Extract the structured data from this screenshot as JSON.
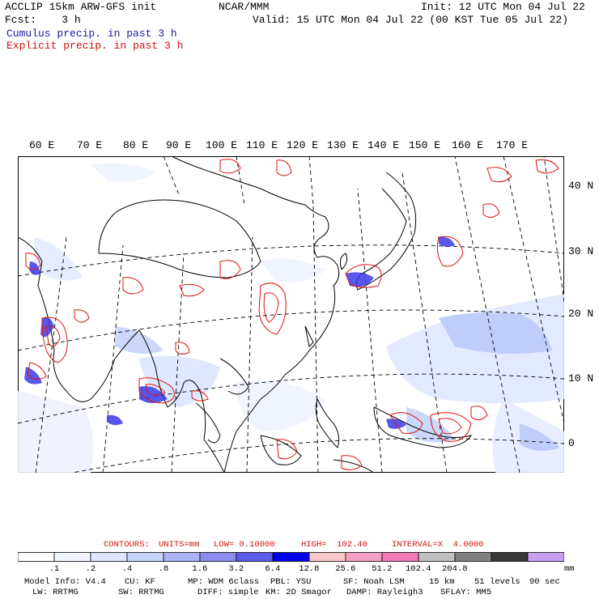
{
  "header": {
    "line1_left": "ACCLIP 15km ARW-GFS init",
    "line1_mid": "NCAR/MMM",
    "line1_right": "Init: 12 UTC Mon 04 Jul 22",
    "line2_left": "Fcst:    3 h",
    "line2_right": "Valid: 15 UTC Mon 04 Jul 22 (00 KST Tue 05 Jul 22)",
    "legend_cumulus": "Cumulus precip. in past 3 h",
    "legend_explicit": "Explicit precip. in past 3 h"
  },
  "map": {
    "lon_labels": [
      "60 E",
      "70 E",
      "80 E",
      "90 E",
      "100 E",
      "110 E",
      "120 E",
      "130 E",
      "140 E",
      "150 E",
      "160 E",
      "170 E"
    ],
    "lat_labels": [
      "40 N",
      "30 N",
      "20 N",
      "10 N",
      "0"
    ]
  },
  "contour_info": {
    "contours": "CONTOURS:",
    "units": "UNITS=mm",
    "low": "LOW= 0.10000",
    "high": "HIGH=  102.40",
    "interval": "INTERVAL=X  4.0000"
  },
  "colorbar": {
    "ticks": [
      ".1",
      ".2",
      ".4",
      ".8",
      "1.6",
      "3.2",
      "6.4",
      "12.8",
      "25.6",
      "51.2",
      "102.4",
      "204.8"
    ],
    "unit": "mm",
    "colors": [
      "#ffffff",
      "#f0f4ff",
      "#dce6ff",
      "#c6d4fa",
      "#aab4f4",
      "#8c8cf0",
      "#5c5cea",
      "#0000e8",
      "#f8c8c8",
      "#f4a0c4",
      "#f078b4",
      "#c0c0c0",
      "#808080",
      "#383838",
      "#c8a0f0"
    ]
  },
  "footer": {
    "line1": [
      {
        "label": "Model Info: V4.4"
      },
      {
        "label": "CU: KF"
      },
      {
        "label": "MP: WDM 6class"
      },
      {
        "label": "PBL: YSU"
      },
      {
        "label": "SF: Noah LSM"
      },
      {
        "label": "15 km"
      },
      {
        "label": "51 levels"
      },
      {
        "label": "90 sec"
      }
    ],
    "line2": [
      {
        "label": "LW: RRTMG"
      },
      {
        "label": "SW: RRTMG"
      },
      {
        "label": "DIFF: simple"
      },
      {
        "label": "KM: 2D Smagor"
      },
      {
        "label": "DAMP: Rayleigh3"
      },
      {
        "label": "SFLAY: MM5"
      }
    ]
  }
}
